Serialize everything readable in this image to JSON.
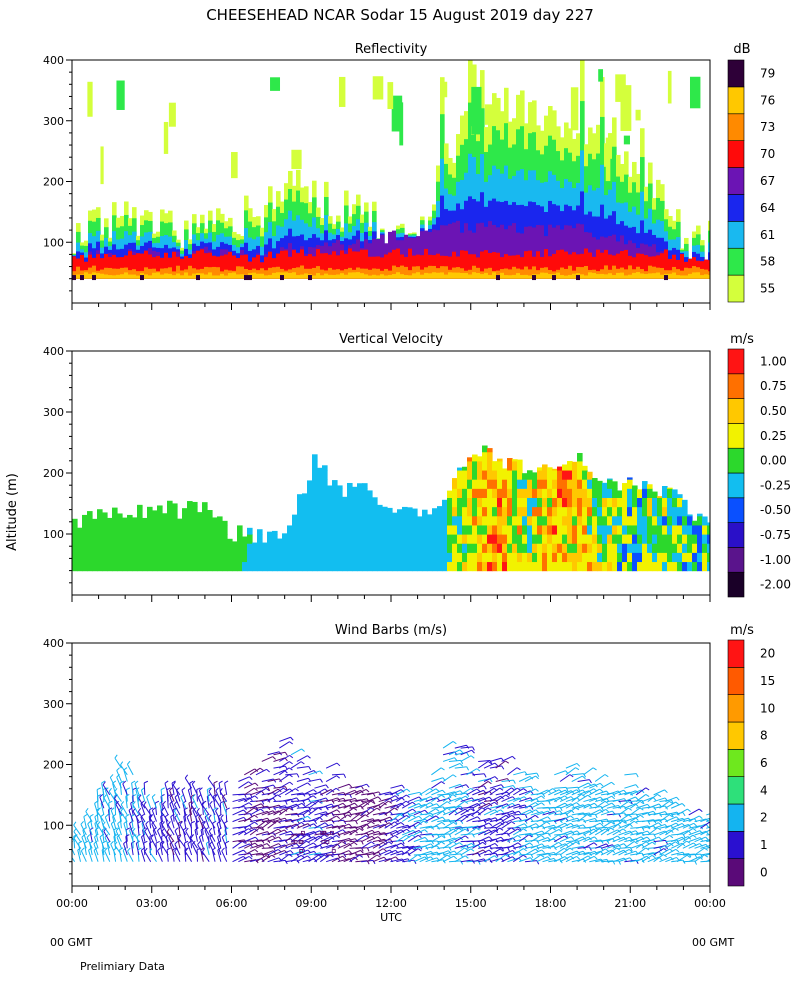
{
  "header": {
    "title": "CHEESEHEAD  NCAR Sodar  15 August 2019  day 227",
    "y_axis_label": "Altitude (m)",
    "x_axis_label": "UTC",
    "left_footer": "00 GMT",
    "right_footer": "00 GMT",
    "note": "Prelimiary Data"
  },
  "chart_data": [
    {
      "type": "heatmap",
      "title": "Reflectivity",
      "ylabel": "Altitude (m)",
      "xlabel": "UTC",
      "x_ticks": [
        "00:00",
        "03:00",
        "06:00",
        "09:00",
        "12:00",
        "15:00",
        "18:00",
        "21:00",
        "00:00"
      ],
      "y_ticks": [
        "100",
        "200",
        "300",
        "400"
      ],
      "ylim": [
        0,
        400
      ],
      "colorbar": {
        "unit": "dB",
        "levels": [
          "55",
          "58",
          "61",
          "64",
          "67",
          "70",
          "73",
          "76",
          "79"
        ],
        "colors": [
          "#d4ff3c",
          "#2ee84a",
          "#19b9f0",
          "#1a26ee",
          "#6b14b4",
          "#ff0a0a",
          "#ff8a00",
          "#ffc800",
          "#2e0038"
        ]
      },
      "series_estimates": {
        "hours": [
          0,
          1,
          2,
          3,
          4,
          5,
          6,
          7,
          8,
          9,
          10,
          11,
          12,
          13,
          14,
          15,
          16,
          17,
          18,
          19,
          20,
          21,
          22,
          23,
          24
        ],
        "echo_top_m": [
          110,
          130,
          140,
          130,
          120,
          120,
          140,
          150,
          210,
          170,
          160,
          140,
          120,
          120,
          250,
          300,
          320,
          330,
          300,
          280,
          290,
          230,
          200,
          110,
          100
        ],
        "core_top_m": [
          70,
          80,
          85,
          80,
          80,
          85,
          80,
          75,
          90,
          90,
          95,
          100,
          110,
          110,
          130,
          120,
          130,
          120,
          120,
          125,
          110,
          100,
          90,
          70,
          60
        ]
      }
    },
    {
      "type": "heatmap",
      "title": "Vertical Velocity",
      "ylabel": "Altitude (m)",
      "xlabel": "UTC",
      "x_ticks": [
        "00:00",
        "03:00",
        "06:00",
        "09:00",
        "12:00",
        "15:00",
        "18:00",
        "21:00",
        "00:00"
      ],
      "y_ticks": [
        "100",
        "200",
        "300",
        "400"
      ],
      "ylim": [
        0,
        400
      ],
      "colorbar": {
        "unit": "m/s",
        "levels": [
          "-2.00",
          "-1.00",
          "-0.75",
          "-0.50",
          "-0.25",
          "0.00",
          "0.25",
          "0.50",
          "0.75",
          "1.00"
        ],
        "colors": [
          "#1a0028",
          "#5a148c",
          "#2a10c8",
          "#0a50ff",
          "#12bef0",
          "#2cd82c",
          "#f2f200",
          "#ffc800",
          "#ff7000",
          "#ff1414"
        ]
      },
      "series_estimates": {
        "hours": [
          0,
          1,
          2,
          3,
          4,
          5,
          6,
          7,
          8,
          9,
          10,
          11,
          12,
          13,
          14,
          15,
          16,
          17,
          18,
          19,
          20,
          21,
          22,
          23,
          24
        ],
        "data_top_m": [
          110,
          140,
          140,
          140,
          140,
          140,
          100,
          100,
          100,
          220,
          170,
          180,
          140,
          130,
          160,
          240,
          220,
          210,
          200,
          220,
          190,
          180,
          170,
          150,
          100
        ],
        "dominant_value_ms": [
          0.0,
          0.0,
          0.0,
          0.0,
          0.0,
          0.0,
          0.0,
          -0.25,
          -0.25,
          -0.25,
          -0.25,
          -0.25,
          -0.25,
          -0.25,
          -0.25,
          0.25,
          0.5,
          0.0,
          0.5,
          0.25,
          0.0,
          -0.25,
          0.0,
          -0.25,
          -0.25
        ]
      }
    },
    {
      "type": "scatter",
      "title": "Wind Barbs (m/s)",
      "ylabel": "Altitude (m)",
      "xlabel": "UTC",
      "x_ticks": [
        "00:00",
        "03:00",
        "06:00",
        "09:00",
        "12:00",
        "15:00",
        "18:00",
        "21:00",
        "00:00"
      ],
      "y_ticks": [
        "100",
        "200",
        "300",
        "400"
      ],
      "ylim": [
        0,
        400
      ],
      "colorbar": {
        "unit": "m/s",
        "levels": [
          "0",
          "1",
          "2",
          "4",
          "6",
          "8",
          "10",
          "15",
          "20"
        ],
        "colors": [
          "#5a0a78",
          "#2a10d0",
          "#14b4f0",
          "#2ee07a",
          "#6ee81e",
          "#ffc800",
          "#ff9a00",
          "#ff5a00",
          "#ff1414"
        ]
      },
      "series_estimates": {
        "hours": [
          0,
          1,
          2,
          3,
          4,
          5,
          6,
          7,
          8,
          9,
          10,
          11,
          12,
          13,
          14,
          15,
          16,
          17,
          18,
          19,
          20,
          21,
          22,
          23,
          24
        ],
        "barb_top_m": [
          80,
          140,
          200,
          140,
          150,
          150,
          150,
          210,
          240,
          200,
          190,
          150,
          150,
          150,
          240,
          220,
          210,
          200,
          190,
          190,
          180,
          170,
          140,
          120,
          110
        ],
        "speed_ms": [
          2,
          2,
          2,
          1,
          1,
          1,
          1,
          0,
          1,
          1,
          0,
          0,
          1,
          2,
          2,
          1,
          1,
          2,
          2,
          2,
          2,
          2,
          2,
          2,
          2
        ]
      }
    }
  ]
}
